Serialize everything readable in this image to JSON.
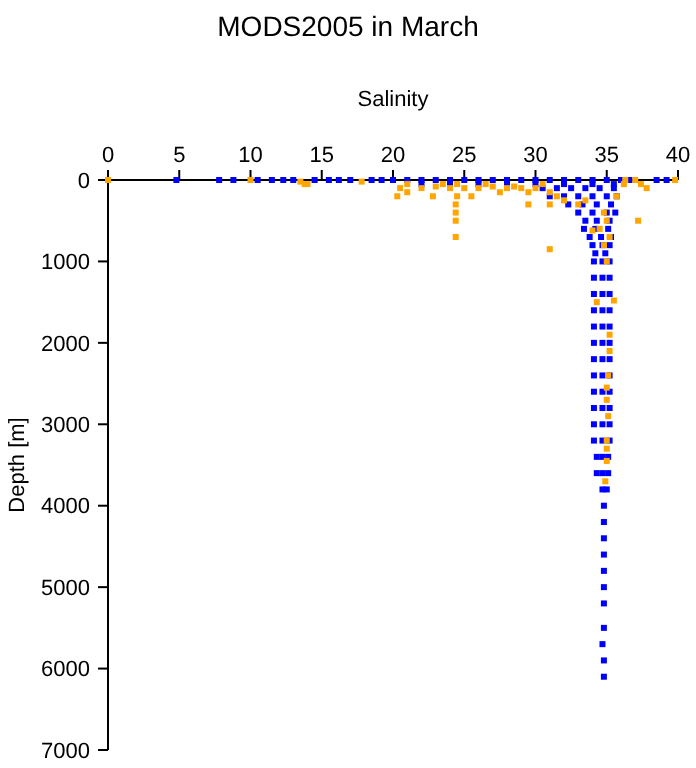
{
  "chart_data": {
    "type": "scatter",
    "title": "MODS2005 in March",
    "xlabel": "Salinity",
    "ylabel": "Depth [m]",
    "xlim": [
      0,
      40
    ],
    "xticks": [
      0,
      5,
      10,
      15,
      20,
      25,
      30,
      35,
      40
    ],
    "ylim": [
      7000,
      0
    ],
    "yticks": [
      0,
      1000,
      2000,
      3000,
      4000,
      5000,
      6000,
      7000
    ],
    "grid": false,
    "marker": "square",
    "series": [
      {
        "color": "#0000ff",
        "x": [
          4.8,
          7.8,
          8.8,
          10.5,
          11.5,
          12.3,
          13,
          14.5,
          15.5,
          16.2,
          17,
          18.5,
          19.2,
          20,
          21,
          22,
          23,
          24,
          25,
          26,
          27,
          28,
          29,
          30,
          31,
          32,
          33,
          34,
          35,
          36,
          36.6,
          38.5,
          39.2,
          22,
          24,
          26,
          28,
          30,
          32,
          34,
          35.5,
          30.5,
          31.5,
          32.5,
          33.5,
          34.5,
          35.5,
          31,
          32,
          33,
          34,
          35,
          35.7,
          32.3,
          33.3,
          34.3,
          35.3,
          33,
          34,
          35,
          35.6,
          33.5,
          34.3,
          35.2,
          33.4,
          34.2,
          35.1,
          33.8,
          34.6,
          35.3,
          34,
          34.7,
          35.2,
          34.2,
          34.9,
          34.1,
          34.7,
          35.2,
          34.1,
          34.7,
          35.2,
          34.1,
          34.7,
          35.2,
          34.1,
          34.7,
          35.2,
          34.1,
          34.7,
          35.2,
          34.1,
          34.7,
          35.2,
          34.1,
          34.7,
          35.2,
          34.1,
          34.7,
          35.2,
          34.1,
          34.7,
          35.2,
          34.1,
          34.7,
          35.2,
          34.1,
          34.7,
          35.2,
          34.1,
          34.7,
          35.2,
          34.3,
          34.7,
          35.1,
          34.3,
          34.7,
          35.1,
          34.7,
          35,
          34.8,
          34.8,
          34.8,
          34.8,
          34.8,
          34.8,
          34.8,
          34.8,
          34.7,
          34.8,
          34.8
        ],
        "values": [
          0,
          0,
          0,
          0,
          0,
          0,
          0,
          0,
          0,
          0,
          0,
          0,
          0,
          0,
          0,
          0,
          0,
          0,
          0,
          0,
          0,
          0,
          0,
          0,
          0,
          0,
          0,
          0,
          0,
          0,
          0,
          0,
          0,
          50,
          50,
          50,
          50,
          50,
          50,
          50,
          50,
          100,
          100,
          100,
          100,
          100,
          100,
          200,
          200,
          200,
          200,
          200,
          200,
          300,
          300,
          300,
          300,
          400,
          400,
          400,
          400,
          500,
          500,
          500,
          600,
          600,
          600,
          700,
          700,
          700,
          800,
          800,
          800,
          900,
          900,
          1000,
          1000,
          1000,
          1200,
          1200,
          1200,
          1400,
          1400,
          1400,
          1600,
          1600,
          1600,
          1800,
          1800,
          1800,
          2000,
          2000,
          2000,
          2200,
          2200,
          2200,
          2400,
          2400,
          2400,
          2600,
          2600,
          2600,
          2800,
          2800,
          2800,
          3000,
          3000,
          3000,
          3200,
          3200,
          3200,
          3400,
          3400,
          3400,
          3600,
          3600,
          3600,
          3800,
          3800,
          4000,
          4200,
          4400,
          4600,
          4800,
          5000,
          5200,
          5500,
          5700,
          5900,
          6100
        ]
      },
      {
        "color": "#ffa500",
        "x": [
          0,
          10,
          13.5,
          14,
          13.8,
          17.8,
          20.5,
          21,
          20.3,
          21,
          22,
          22.8,
          23,
          23.5,
          24,
          24.5,
          24.5,
          25,
          24.4,
          24.4,
          24.4,
          24.4,
          25.5,
          26,
          26.5,
          27,
          27.5,
          28,
          28.5,
          29,
          29.5,
          30,
          30.5,
          31,
          31.5,
          32,
          31,
          29.5,
          31,
          33.5,
          33,
          34.8,
          34.5,
          35,
          35.7,
          36.2,
          36.3,
          37,
          37.4,
          37.8,
          37.2,
          39.8,
          34,
          35.2,
          34.8,
          35,
          34.3,
          35.5,
          35.2,
          35.2,
          35.1,
          35,
          35,
          35.1,
          35,
          35,
          35,
          34.9
        ],
        "values": [
          0,
          0,
          20,
          50,
          50,
          20,
          100,
          50,
          200,
          150,
          100,
          200,
          80,
          50,
          100,
          200,
          50,
          100,
          300,
          400,
          500,
          700,
          200,
          100,
          50,
          80,
          150,
          100,
          80,
          100,
          150,
          100,
          50,
          150,
          200,
          250,
          300,
          300,
          850,
          250,
          300,
          400,
          600,
          500,
          200,
          50,
          0,
          0,
          50,
          100,
          500,
          0,
          620,
          700,
          800,
          1000,
          1500,
          1480,
          1900,
          2100,
          2400,
          2550,
          2700,
          2900,
          3200,
          3300,
          3450,
          3700
        ]
      }
    ]
  }
}
